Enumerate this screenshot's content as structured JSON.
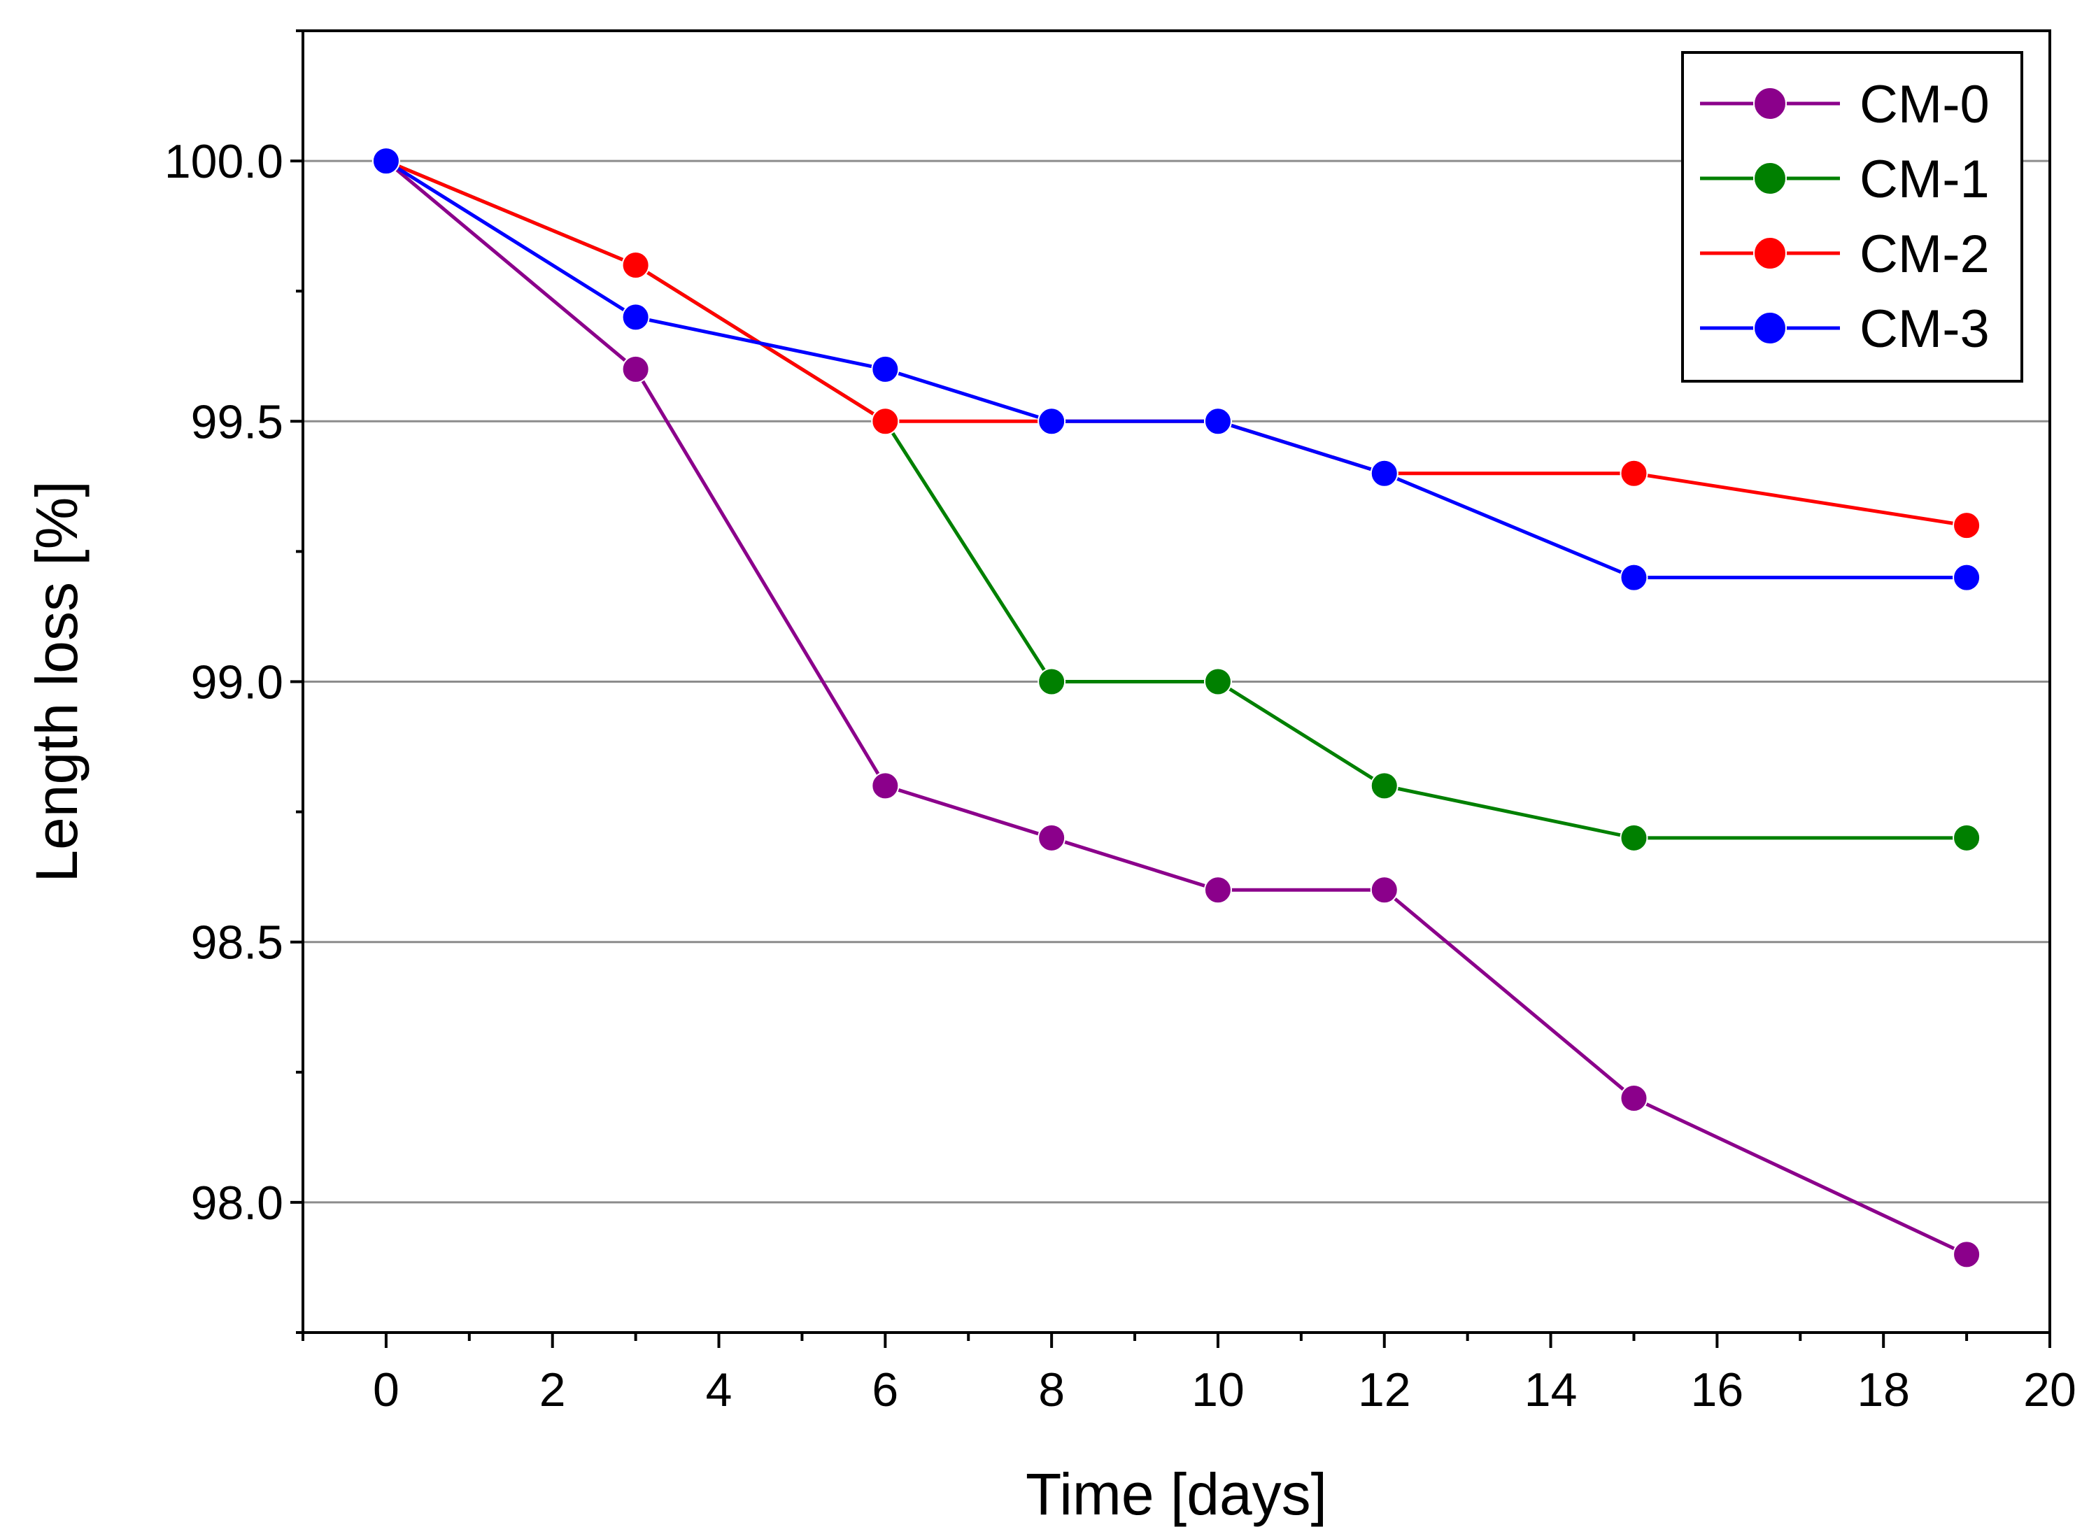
{
  "chart_data": {
    "type": "line",
    "title": "",
    "xlabel": "Time [days]",
    "ylabel": "Length loss [%]",
    "xlim": [
      -1,
      20
    ],
    "ylim": [
      97.75,
      100.25
    ],
    "xticks": [
      0,
      2,
      4,
      6,
      8,
      10,
      12,
      14,
      16,
      18,
      20
    ],
    "xtick_labels": [
      "0",
      "2",
      "4",
      "6",
      "8",
      "10",
      "12",
      "14",
      "16",
      "18",
      "20"
    ],
    "yticks": [
      98.0,
      98.5,
      99.0,
      99.5,
      100.0
    ],
    "ytick_labels": [
      "98.0",
      "98.5",
      "99.0",
      "99.5",
      "100.0"
    ],
    "grid": "horizontal",
    "legend_position": "top-right",
    "x": [
      0,
      3,
      6,
      8,
      10,
      12,
      15,
      19
    ],
    "series": [
      {
        "name": "CM-0",
        "color": "#8B008B",
        "values": [
          100.0,
          99.6,
          98.8,
          98.7,
          98.6,
          98.6,
          98.2,
          97.9
        ]
      },
      {
        "name": "CM-1",
        "color": "#008000",
        "values": [
          100.0,
          99.8,
          99.5,
          99.0,
          99.0,
          98.8,
          98.7,
          98.7
        ]
      },
      {
        "name": "CM-2",
        "color": "#FF0000",
        "values": [
          100.0,
          99.8,
          99.5,
          99.5,
          99.5,
          99.4,
          99.4,
          99.3
        ]
      },
      {
        "name": "CM-3",
        "color": "#0000FF",
        "values": [
          100.0,
          99.7,
          99.6,
          99.5,
          99.5,
          99.4,
          99.2,
          99.2
        ]
      }
    ]
  }
}
